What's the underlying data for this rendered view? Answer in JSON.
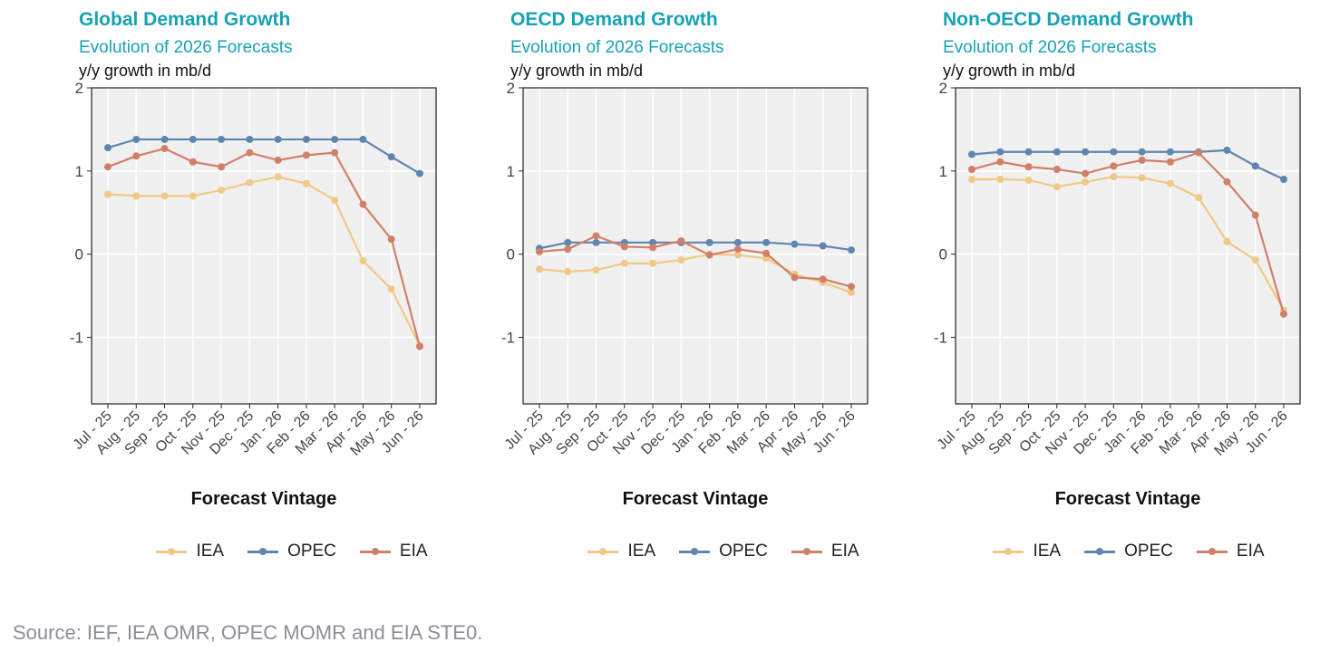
{
  "source": "Source: IEF, IEA OMR, OPEC MOMR and EIA STE0.",
  "legend_labels": [
    "IEA",
    "OPEC",
    "EIA"
  ],
  "colors": {
    "IEA": "#f0c987",
    "OPEC": "#5f86b0",
    "EIA": "#d0806a",
    "panel_bg": "#f0f0f0"
  },
  "chart_data": [
    {
      "type": "line",
      "title": "Global Demand Growth",
      "subtitle": "Evolution of 2026 Forecasts",
      "ylabel": "y/y growth in mb/d",
      "xlabel": "Forecast Vintage",
      "ylim": [
        -1.8,
        2.0
      ],
      "yticks": [
        "2",
        "1",
        "0",
        "-1"
      ],
      "categories": [
        "Jul - 25",
        "Aug - 25",
        "Sep - 25",
        "Oct - 25",
        "Nov - 25",
        "Dec - 25",
        "Jan - 26",
        "Feb - 26",
        "Mar - 26",
        "Apr - 26",
        "May - 26",
        "Jun - 26"
      ],
      "legend": "bottom",
      "grid": true,
      "series": [
        {
          "name": "IEA",
          "values": [
            0.72,
            0.7,
            0.7,
            0.7,
            0.77,
            0.86,
            0.93,
            0.85,
            0.65,
            -0.08,
            -0.42,
            -1.1
          ]
        },
        {
          "name": "OPEC",
          "values": [
            1.28,
            1.38,
            1.38,
            1.38,
            1.38,
            1.38,
            1.38,
            1.38,
            1.38,
            1.38,
            1.17,
            0.97
          ]
        },
        {
          "name": "EIA",
          "values": [
            1.05,
            1.18,
            1.27,
            1.11,
            1.05,
            1.22,
            1.13,
            1.19,
            1.22,
            0.6,
            0.18,
            -1.11
          ]
        }
      ]
    },
    {
      "type": "line",
      "title": "OECD Demand Growth",
      "subtitle": "Evolution of 2026 Forecasts",
      "ylabel": "y/y growth in mb/d",
      "xlabel": "Forecast Vintage",
      "ylim": [
        -1.8,
        2.0
      ],
      "yticks": [
        "2",
        "1",
        "0",
        "-1"
      ],
      "categories": [
        "Jul - 25",
        "Aug - 25",
        "Sep - 25",
        "Oct - 25",
        "Nov - 25",
        "Dec - 25",
        "Jan - 26",
        "Feb - 26",
        "Mar - 26",
        "Apr - 26",
        "May - 26",
        "Jun - 26"
      ],
      "legend": "bottom",
      "grid": true,
      "series": [
        {
          "name": "IEA",
          "values": [
            -0.18,
            -0.21,
            -0.19,
            -0.11,
            -0.11,
            -0.07,
            0.0,
            -0.01,
            -0.05,
            -0.24,
            -0.34,
            -0.46
          ]
        },
        {
          "name": "OPEC",
          "values": [
            0.07,
            0.14,
            0.14,
            0.14,
            0.14,
            0.14,
            0.14,
            0.14,
            0.14,
            0.12,
            0.1,
            0.05
          ]
        },
        {
          "name": "EIA",
          "values": [
            0.03,
            0.06,
            0.22,
            0.09,
            0.08,
            0.16,
            -0.01,
            0.06,
            0.01,
            -0.28,
            -0.3,
            -0.39
          ]
        }
      ]
    },
    {
      "type": "line",
      "title": "Non-OECD Demand Growth",
      "subtitle": "Evolution of 2026 Forecasts",
      "ylabel": "y/y growth in mb/d",
      "xlabel": "Forecast Vintage",
      "ylim": [
        -1.8,
        2.0
      ],
      "yticks": [
        "2",
        "1",
        "0",
        "-1"
      ],
      "categories": [
        "Jul - 25",
        "Aug - 25",
        "Sep - 25",
        "Oct - 25",
        "Nov - 25",
        "Dec - 25",
        "Jan - 26",
        "Feb - 26",
        "Mar - 26",
        "Apr - 26",
        "May - 26",
        "Jun - 26"
      ],
      "legend": "bottom",
      "grid": true,
      "series": [
        {
          "name": "IEA",
          "values": [
            0.9,
            0.9,
            0.89,
            0.81,
            0.87,
            0.93,
            0.92,
            0.85,
            0.68,
            0.15,
            -0.07,
            -0.67
          ]
        },
        {
          "name": "OPEC",
          "values": [
            1.2,
            1.23,
            1.23,
            1.23,
            1.23,
            1.23,
            1.23,
            1.23,
            1.23,
            1.25,
            1.06,
            0.9
          ]
        },
        {
          "name": "EIA",
          "values": [
            1.02,
            1.11,
            1.05,
            1.02,
            0.97,
            1.06,
            1.13,
            1.11,
            1.22,
            0.87,
            0.47,
            -0.72
          ]
        }
      ]
    }
  ]
}
